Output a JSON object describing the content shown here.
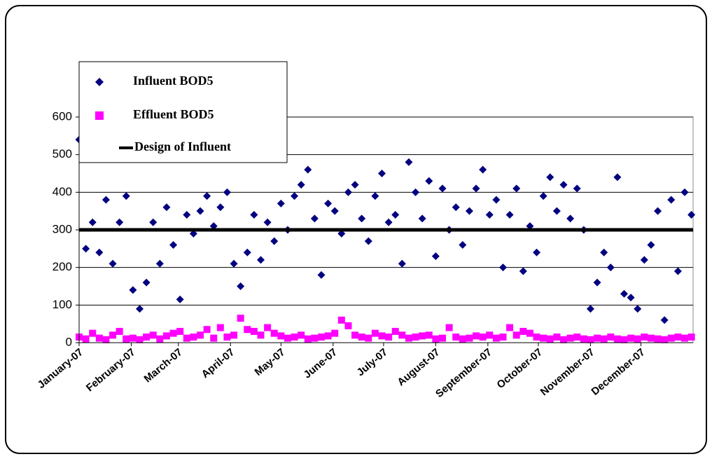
{
  "chart_data": {
    "type": "scatter",
    "series": [
      {
        "name": "Influent BOD5",
        "color": "#000080",
        "marker": "diamond",
        "x": [
          1,
          5,
          9,
          13,
          17,
          21,
          25,
          29,
          33,
          37,
          41,
          45,
          49,
          53,
          57,
          61,
          65,
          69,
          73,
          77,
          81,
          85,
          89,
          93,
          97,
          101,
          105,
          109,
          113,
          117,
          121,
          125,
          129,
          133,
          137,
          141,
          145,
          149,
          153,
          157,
          161,
          165,
          169,
          173,
          177,
          181,
          185,
          189,
          193,
          197,
          201,
          205,
          209,
          213,
          217,
          221,
          225,
          229,
          233,
          237,
          241,
          245,
          249,
          253,
          257,
          261,
          265,
          269,
          273,
          277,
          281,
          285,
          289,
          293,
          297,
          301,
          305,
          309,
          313,
          317,
          321,
          325,
          329,
          333,
          337,
          341,
          345,
          349,
          353,
          357,
          361,
          365
        ],
        "values": [
          540,
          250,
          320,
          240,
          380,
          210,
          320,
          390,
          140,
          90,
          160,
          320,
          210,
          360,
          260,
          115,
          340,
          290,
          350,
          390,
          310,
          360,
          400,
          210,
          150,
          240,
          340,
          220,
          320,
          270,
          370,
          300,
          390,
          420,
          460,
          330,
          180,
          370,
          350,
          290,
          400,
          420,
          330,
          270,
          390,
          450,
          320,
          340,
          210,
          480,
          400,
          330,
          430,
          230,
          410,
          300,
          360,
          260,
          350,
          410,
          460,
          340,
          380,
          200,
          340,
          410,
          190,
          310,
          240,
          390,
          440,
          350,
          420,
          330,
          410,
          300,
          90,
          160,
          240,
          200,
          440,
          130,
          120,
          90,
          220,
          260,
          350,
          60,
          380,
          190,
          400,
          340
        ]
      },
      {
        "name": "Effluent BOD5",
        "color": "#FF00FF",
        "marker": "square",
        "x": [
          1,
          5,
          9,
          13,
          17,
          21,
          25,
          29,
          33,
          37,
          41,
          45,
          49,
          53,
          57,
          61,
          65,
          69,
          73,
          77,
          81,
          85,
          89,
          93,
          97,
          101,
          105,
          109,
          113,
          117,
          121,
          125,
          129,
          133,
          137,
          141,
          145,
          149,
          153,
          157,
          161,
          165,
          169,
          173,
          177,
          181,
          185,
          189,
          193,
          197,
          201,
          205,
          209,
          213,
          217,
          221,
          225,
          229,
          233,
          237,
          241,
          245,
          249,
          253,
          257,
          261,
          265,
          269,
          273,
          277,
          281,
          285,
          289,
          293,
          297,
          301,
          305,
          309,
          313,
          317,
          321,
          325,
          329,
          333,
          337,
          341,
          345,
          349,
          353,
          357,
          361,
          365
        ],
        "values": [
          15,
          10,
          25,
          12,
          8,
          20,
          30,
          10,
          12,
          8,
          15,
          20,
          10,
          18,
          25,
          30,
          12,
          15,
          20,
          35,
          12,
          40,
          15,
          20,
          65,
          35,
          30,
          20,
          40,
          25,
          18,
          12,
          15,
          20,
          10,
          12,
          15,
          18,
          25,
          60,
          45,
          20,
          15,
          12,
          25,
          18,
          15,
          30,
          20,
          12,
          15,
          18,
          20,
          10,
          12,
          40,
          15,
          10,
          12,
          18,
          15,
          20,
          12,
          15,
          40,
          20,
          30,
          25,
          15,
          12,
          10,
          15,
          8,
          12,
          15,
          10,
          8,
          12,
          10,
          15,
          10,
          8,
          12,
          10,
          15,
          12,
          10,
          8,
          12,
          15,
          12,
          15
        ]
      }
    ],
    "hline": {
      "name": "Design of Influent",
      "value": 300,
      "color": "#000000"
    },
    "xlim": [
      1,
      366
    ],
    "xticks": [
      {
        "value": 1,
        "label": "January-07"
      },
      {
        "value": 32,
        "label": "February-07"
      },
      {
        "value": 60,
        "label": "March-07"
      },
      {
        "value": 91,
        "label": "April-07"
      },
      {
        "value": 121,
        "label": "May-07"
      },
      {
        "value": 152,
        "label": "June-07"
      },
      {
        "value": 182,
        "label": "July-07"
      },
      {
        "value": 213,
        "label": "August-07"
      },
      {
        "value": 244,
        "label": "September-07"
      },
      {
        "value": 274,
        "label": "October-07"
      },
      {
        "value": 305,
        "label": "November-07"
      },
      {
        "value": 335,
        "label": "December-07"
      }
    ],
    "ylim": [
      0,
      600
    ],
    "yticks": [
      0,
      100,
      200,
      300,
      400,
      500,
      600
    ],
    "grid": true
  }
}
